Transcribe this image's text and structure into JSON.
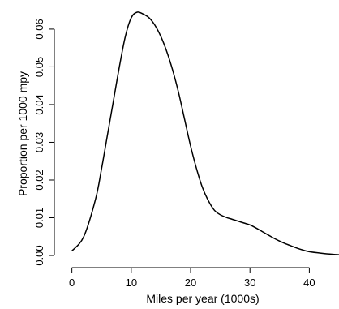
{
  "chart_data": {
    "type": "line",
    "title": "",
    "xlabel": "Miles per year (1000s)",
    "ylabel": "Proportion per 1000 mpy",
    "xlim": [
      -2,
      45
    ],
    "ylim": [
      -0.0015,
      0.066
    ],
    "x_ticks": [
      0,
      10,
      20,
      30,
      40
    ],
    "x_tick_labels": [
      "0",
      "10",
      "20",
      "30",
      "40"
    ],
    "y_ticks": [
      0.0,
      0.01,
      0.02,
      0.03,
      0.04,
      0.05,
      0.06
    ],
    "y_tick_labels": [
      "0.00",
      "0.01",
      "0.02",
      "0.03",
      "0.04",
      "0.05",
      "0.06"
    ],
    "grid": false,
    "series": [
      {
        "color": "#000000",
        "x": [
          0,
          2,
          4,
          5,
          6,
          7,
          8,
          9,
          10,
          11,
          12,
          13,
          14,
          15,
          16,
          17,
          18,
          19,
          20,
          21,
          22,
          23,
          24,
          25,
          26,
          27,
          28,
          29,
          30,
          31,
          32,
          33,
          34,
          35,
          36,
          37,
          38,
          39,
          40,
          42,
          44,
          45
        ],
        "y": [
          0.0012,
          0.005,
          0.015,
          0.023,
          0.032,
          0.041,
          0.05,
          0.058,
          0.063,
          0.0645,
          0.064,
          0.063,
          0.061,
          0.058,
          0.054,
          0.049,
          0.043,
          0.036,
          0.029,
          0.023,
          0.018,
          0.0145,
          0.012,
          0.0108,
          0.0101,
          0.0096,
          0.0091,
          0.0086,
          0.0081,
          0.0073,
          0.0064,
          0.0055,
          0.0046,
          0.0038,
          0.0031,
          0.0025,
          0.0019,
          0.0014,
          0.001,
          0.0006,
          0.0003,
          0.0002
        ]
      }
    ]
  }
}
